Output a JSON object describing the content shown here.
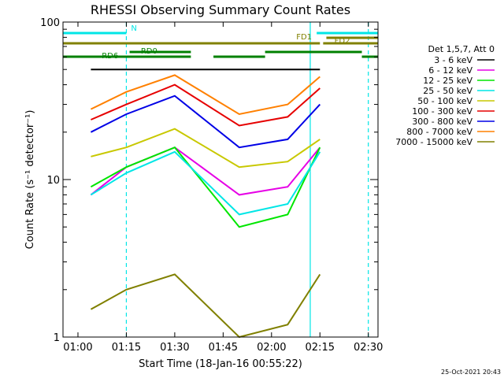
{
  "chart_data": {
    "type": "line",
    "title": "RHESSI Observing Summary Count Rates",
    "xlabel": "Start Time (18-Jan-16 00:55:22)",
    "ylabel": "Count Rate (s⁻¹ detector⁻¹)",
    "yscale": "log",
    "ylim": [
      1,
      100
    ],
    "xlim": [
      "00:55:22",
      "02:33:00"
    ],
    "x_ticks": [
      "01:00",
      "01:15",
      "01:30",
      "01:45",
      "02:00",
      "02:15",
      "02:30"
    ],
    "y_ticks": [
      "1",
      "10",
      "100"
    ],
    "legend_title": "Det 1,5,7, Att 0",
    "legend_position": "right",
    "series": [
      {
        "name": "3 - 6 keV",
        "color": "#000000",
        "x": [
          "01:04",
          "01:15",
          "01:30",
          "01:50",
          "02:05",
          "02:15"
        ],
        "values": [
          50,
          50,
          50,
          50,
          50,
          50
        ]
      },
      {
        "name": "6 - 12 keV",
        "color": "#e600e6",
        "x": [
          "01:04",
          "01:15",
          "01:30",
          "01:50",
          "02:05",
          "02:15"
        ],
        "values": [
          8,
          12,
          16,
          8,
          9,
          16
        ]
      },
      {
        "name": "12 - 25 keV",
        "color": "#00e600",
        "x": [
          "01:04",
          "01:15",
          "01:30",
          "01:50",
          "02:05",
          "02:15"
        ],
        "values": [
          9,
          12,
          16,
          5,
          6,
          16
        ]
      },
      {
        "name": "25 - 50 keV",
        "color": "#00e6e6",
        "x": [
          "01:04",
          "01:15",
          "01:30",
          "01:50",
          "02:05",
          "02:15"
        ],
        "values": [
          8,
          11,
          15,
          6,
          7,
          15
        ]
      },
      {
        "name": "50 - 100 keV",
        "color": "#c8c800",
        "x": [
          "01:04",
          "01:15",
          "01:30",
          "01:50",
          "02:05",
          "02:15"
        ],
        "values": [
          14,
          16,
          21,
          12,
          13,
          18
        ]
      },
      {
        "name": "100 - 300 keV",
        "color": "#e60000",
        "x": [
          "01:04",
          "01:15",
          "01:30",
          "01:50",
          "02:05",
          "02:15"
        ],
        "values": [
          24,
          30,
          40,
          22,
          25,
          38
        ]
      },
      {
        "name": "300 - 800 keV",
        "color": "#0000e6",
        "x": [
          "01:04",
          "01:15",
          "01:30",
          "01:50",
          "02:05",
          "02:15"
        ],
        "values": [
          20,
          26,
          34,
          16,
          18,
          30
        ]
      },
      {
        "name": "800 - 7000 keV",
        "color": "#ff8000",
        "x": [
          "01:04",
          "01:15",
          "01:30",
          "01:50",
          "02:05",
          "02:15"
        ],
        "values": [
          28,
          36,
          46,
          26,
          30,
          45
        ]
      },
      {
        "name": "7000 - 15000 keV",
        "color": "#808000",
        "x": [
          "01:04",
          "01:15",
          "01:30",
          "01:50",
          "02:05",
          "02:15"
        ],
        "values": [
          1.5,
          2.0,
          2.5,
          1.0,
          1.2,
          2.5
        ]
      }
    ],
    "flag_bars": [
      {
        "label": "N",
        "color": "#00e6e6",
        "segments": [
          [
            "00:55:22",
            "01:15"
          ],
          [
            "02:14",
            "02:33"
          ]
        ]
      },
      {
        "label": "FD1",
        "color": "#808000",
        "segments": [
          [
            "00:55:22",
            "02:15"
          ],
          [
            "02:16",
            "02:33"
          ]
        ]
      },
      {
        "label": "FD2",
        "color": "#808000",
        "segments": [
          [
            "02:17",
            "02:33"
          ]
        ]
      },
      {
        "label": "RD0",
        "color": "#008000",
        "segments": [
          [
            "00:55:22",
            "01:35"
          ],
          [
            "01:42",
            "01:58"
          ],
          [
            "02:28",
            "02:33"
          ]
        ]
      },
      {
        "label": "RD6",
        "color": "#008000",
        "segments": [
          [
            "01:16",
            "01:35"
          ],
          [
            "01:58",
            "02:28"
          ]
        ]
      }
    ],
    "vertical_markers": [
      {
        "x": "01:15",
        "color": "#00e6e6",
        "style": "dashed"
      },
      {
        "x": "02:12",
        "color": "#00e6e6",
        "style": "solid"
      },
      {
        "x": "02:30",
        "color": "#00e6e6",
        "style": "dashed"
      }
    ],
    "timestamp": "25-Oct-2021 20:43"
  }
}
